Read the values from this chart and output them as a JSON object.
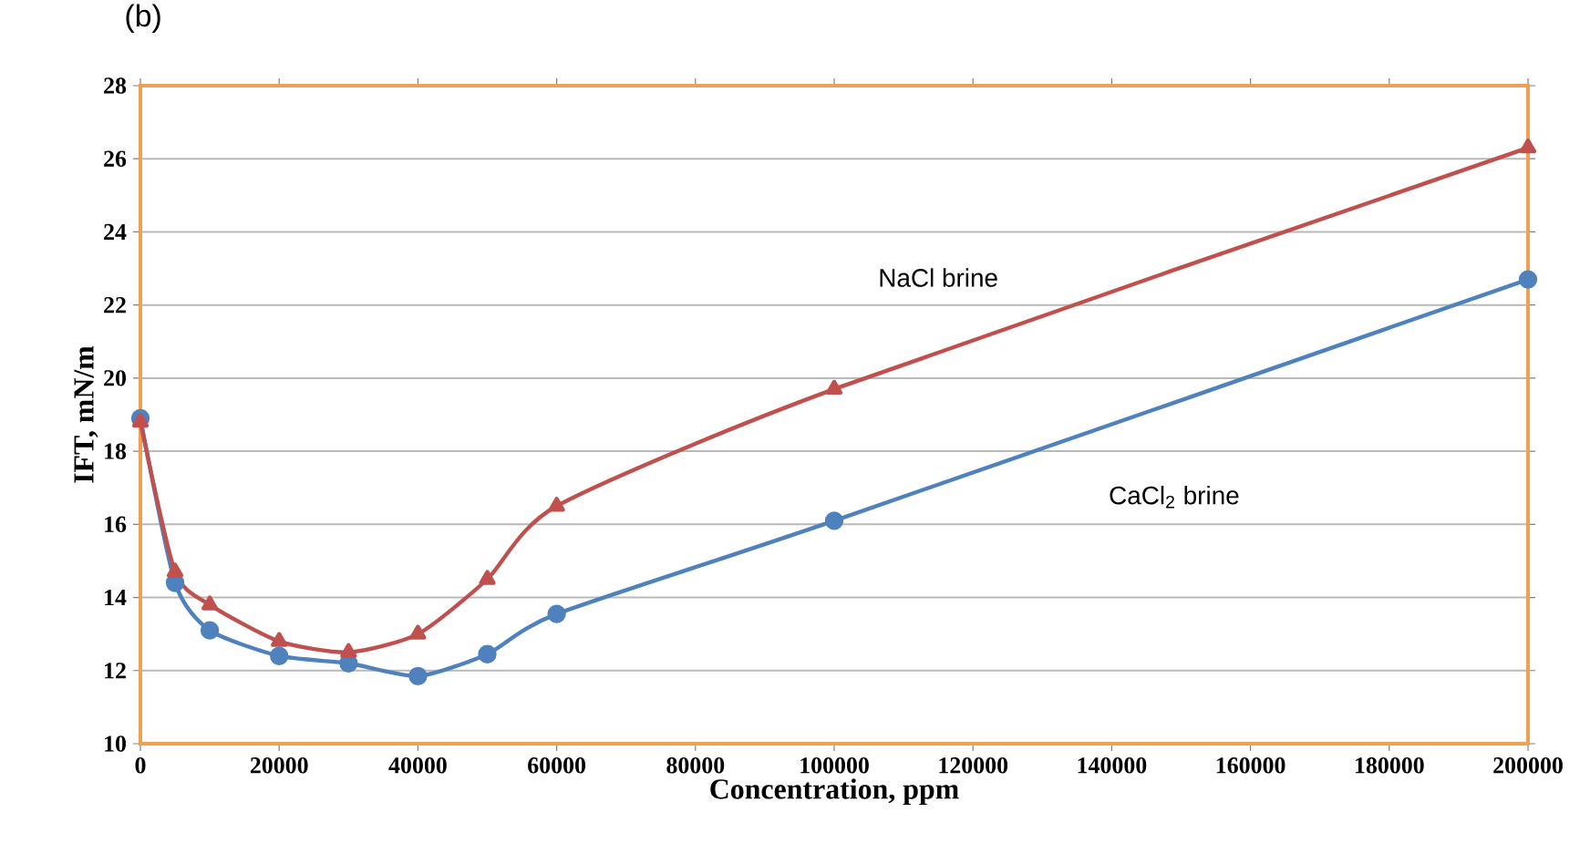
{
  "chart_data": {
    "type": "line",
    "title": "(b)",
    "xlabel": "Concentration, ppm",
    "ylabel": "IFT, mN/m",
    "x": [
      0,
      5000,
      10000,
      20000,
      30000,
      40000,
      50000,
      60000,
      100000,
      200000
    ],
    "series": [
      {
        "name": "NaCl brine",
        "color": "#c0504d",
        "marker": "triangle",
        "values": [
          18.8,
          14.7,
          13.8,
          12.8,
          12.5,
          13.0,
          14.5,
          16.5,
          19.7,
          26.3
        ]
      },
      {
        "name": "CaCl$_{2}$ brine",
        "color": "#4f81bd",
        "marker": "circle",
        "values": [
          18.9,
          14.4,
          13.1,
          12.4,
          12.2,
          11.85,
          12.45,
          13.55,
          16.1,
          22.7
        ]
      }
    ],
    "xlim": [
      0,
      200000
    ],
    "xticks": [
      0,
      20000,
      40000,
      60000,
      80000,
      100000,
      120000,
      140000,
      160000,
      180000,
      200000
    ],
    "ylim": [
      10,
      28
    ],
    "yticks": [
      10,
      12,
      14,
      16,
      18,
      20,
      22,
      24,
      26,
      28
    ],
    "grid": "y",
    "legend": false,
    "line_style": "solid"
  }
}
